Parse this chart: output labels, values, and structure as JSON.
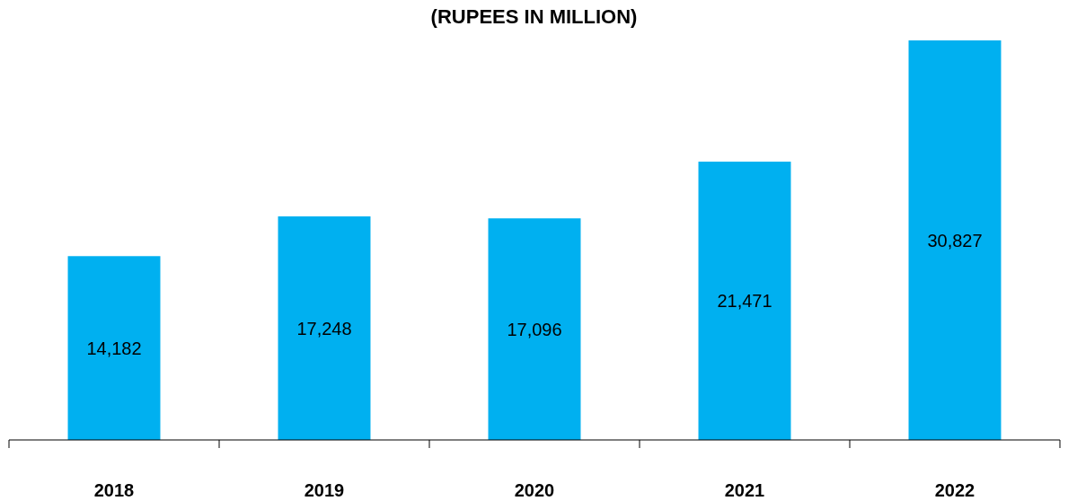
{
  "chart_data": {
    "type": "bar",
    "title": "(RUPEES IN MILLION)",
    "categories": [
      "2018",
      "2019",
      "2020",
      "2021",
      "2022"
    ],
    "values": [
      14182,
      17248,
      17096,
      21471,
      30827
    ],
    "color": "#00b0f0",
    "value_labels": [
      "14,182",
      "17,248",
      "17,096",
      "21,471",
      "30,827"
    ]
  }
}
